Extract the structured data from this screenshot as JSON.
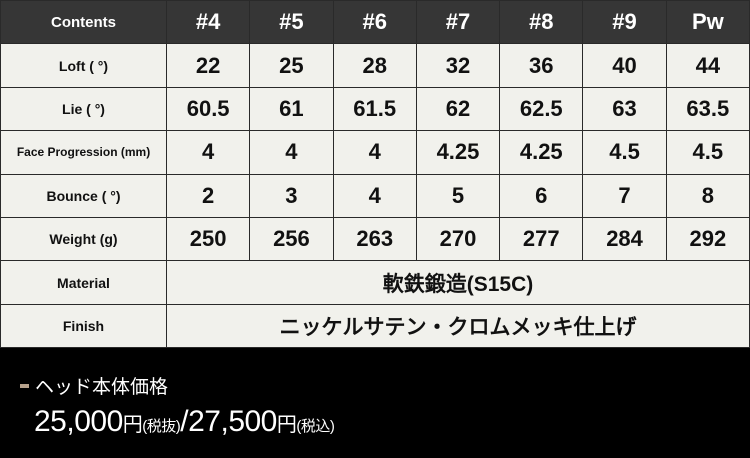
{
  "table": {
    "header": [
      "Contents",
      "#4",
      "#5",
      "#6",
      "#7",
      "#8",
      "#9",
      "Pw"
    ],
    "rows": [
      {
        "label": "Loft ( °)",
        "values": [
          "22",
          "25",
          "28",
          "32",
          "36",
          "40",
          "44"
        ]
      },
      {
        "label": "Lie ( °)",
        "values": [
          "60.5",
          "61",
          "61.5",
          "62",
          "62.5",
          "63",
          "63.5"
        ]
      },
      {
        "label": "Face Progression (mm)",
        "values": [
          "4",
          "4",
          "4",
          "4.25",
          "4.25",
          "4.5",
          "4.5"
        ]
      },
      {
        "label": "Bounce ( °)",
        "values": [
          "2",
          "3",
          "4",
          "5",
          "6",
          "7",
          "8"
        ]
      },
      {
        "label": "Weight (g)",
        "values": [
          "250",
          "256",
          "263",
          "270",
          "277",
          "284",
          "292"
        ]
      }
    ],
    "material": {
      "label": "Material",
      "value": "軟鉄鍛造(S15C)"
    },
    "finish": {
      "label": "Finish",
      "value": "ニッケルサテン・クロムメッキ仕上げ"
    }
  },
  "price": {
    "title": "ヘッド本体価格",
    "ex_amount": "25,000",
    "yen": "円",
    "ex_label": "(税抜)",
    "sep": "/",
    "in_amount": "27,500",
    "in_label": "(税込)"
  },
  "colors": {
    "header_bg": "#363636",
    "cell_bg": "#f1f1ec",
    "accent": "#b7a28c"
  }
}
